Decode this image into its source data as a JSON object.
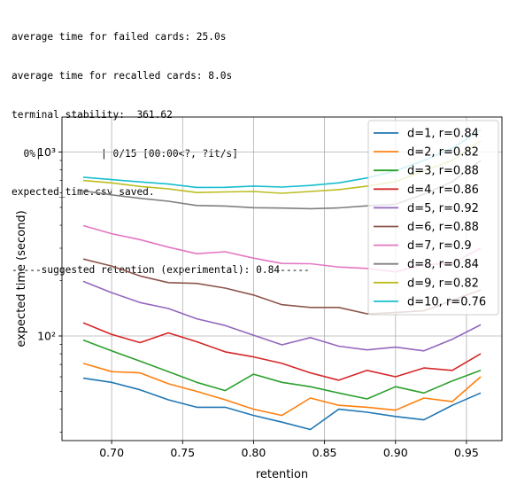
{
  "console": {
    "lines": [
      "average time for failed cards: 25.0s",
      "average time for recalled cards: 8.0s",
      "terminal stability:  361.62",
      "  0%|          | 0/15 [00:00<?, ?it/s]",
      "expected_time.csv saved.",
      "",
      "-----suggested retention (experimental): 0.84-----"
    ]
  },
  "chart_data": {
    "type": "line",
    "xlabel": "retention",
    "ylabel": "expected time (second)",
    "xlim": [
      0.665,
      0.975
    ],
    "ylim": [
      27,
      1550
    ],
    "yscale": "log",
    "grid": true,
    "legend_position": "top-right",
    "x_ticks": [
      0.7,
      0.75,
      0.8,
      0.85,
      0.9,
      0.95
    ],
    "x_tick_labels": [
      "0.70",
      "0.75",
      "0.80",
      "0.85",
      "0.90",
      "0.95"
    ],
    "y_major_ticks": [
      100,
      1000
    ],
    "y_tick_labels": [
      "10²",
      "10³"
    ],
    "x": [
      0.68,
      0.7,
      0.72,
      0.74,
      0.76,
      0.78,
      0.8,
      0.82,
      0.84,
      0.86,
      0.88,
      0.9,
      0.92,
      0.94,
      0.96
    ],
    "series": [
      {
        "name": "d=1, r=0.84",
        "color": "#1f77b4",
        "values": [
          59,
          56,
          51,
          45,
          41,
          41,
          37,
          34,
          31,
          40,
          38.5,
          36.5,
          35,
          42,
          49
        ]
      },
      {
        "name": "d=2, r=0.82",
        "color": "#ff7f0e",
        "values": [
          71,
          64,
          63,
          55,
          50,
          45,
          40,
          37,
          46,
          42,
          41,
          39.5,
          46,
          44,
          60
        ]
      },
      {
        "name": "d=3, r=0.88",
        "color": "#2ca02c",
        "values": [
          95,
          83,
          73,
          64,
          56,
          50.5,
          62,
          56,
          53,
          49,
          45.5,
          53,
          49,
          57,
          65
        ]
      },
      {
        "name": "d=4, r=0.86",
        "color": "#d62728",
        "values": [
          118,
          102,
          92,
          104,
          93,
          82,
          77,
          71,
          63,
          57.5,
          65,
          60,
          67,
          65,
          80
        ]
      },
      {
        "name": "d=5, r=0.92",
        "color": "#9467bd",
        "values": [
          198,
          172,
          152,
          141,
          124,
          114,
          101,
          89.5,
          98,
          88,
          84,
          87,
          83,
          96,
          115
        ]
      },
      {
        "name": "d=6, r=0.88",
        "color": "#8c564b",
        "values": [
          262,
          240,
          212,
          195,
          193,
          182,
          167,
          148,
          143,
          143,
          132,
          134,
          137,
          156,
          178
        ]
      },
      {
        "name": "d=7, r=0.9",
        "color": "#e377c2",
        "values": [
          398,
          360,
          334,
          304,
          280,
          287,
          265,
          248,
          247,
          237,
          233,
          223,
          244,
          248,
          300
        ]
      },
      {
        "name": "d=8, r=0.84",
        "color": "#7f7f7f",
        "values": [
          615,
          585,
          560,
          540,
          512,
          509,
          498,
          496,
          492,
          497,
          510,
          520,
          590,
          690,
          900
        ]
      },
      {
        "name": "d=9, r=0.82",
        "color": "#bcbd22",
        "values": [
          700,
          680,
          650,
          630,
          602,
          607,
          610,
          597,
          610,
          625,
          653,
          690,
          790,
          900,
          1150
        ]
      },
      {
        "name": "d=10, r=0.76",
        "color": "#17becf",
        "values": [
          730,
          708,
          688,
          670,
          642,
          643,
          653,
          645,
          658,
          680,
          723,
          790,
          900,
          1050,
          1320
        ]
      }
    ]
  }
}
